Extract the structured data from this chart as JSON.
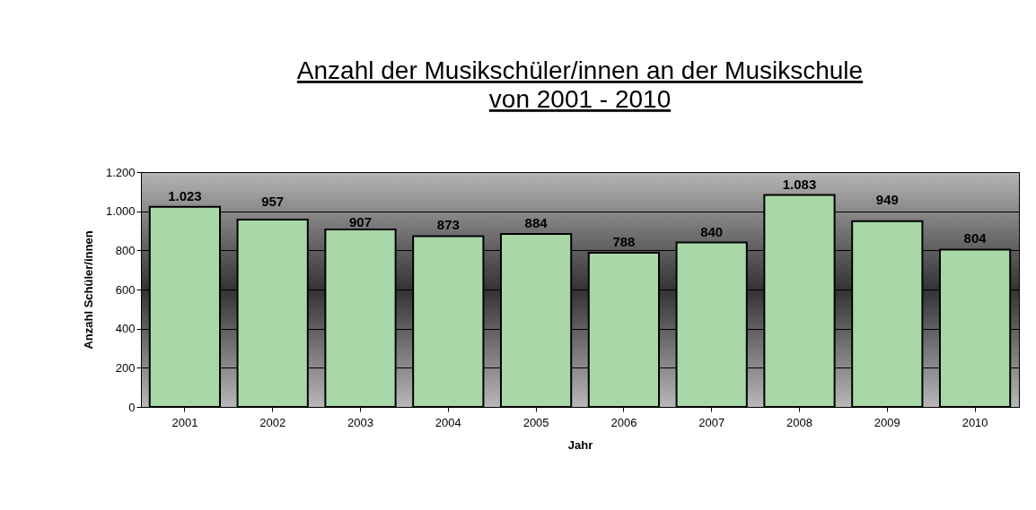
{
  "chart_data": {
    "type": "bar",
    "title": "Anzahl der Musikschüler/innen an der Musikschule",
    "subtitle": "von 2001 - 2010",
    "xlabel": "Jahr",
    "ylabel": "Anzahl Schüler/innen",
    "categories": [
      "2001",
      "2002",
      "2003",
      "2004",
      "2005",
      "2006",
      "2007",
      "2008",
      "2009",
      "2010"
    ],
    "values": [
      1023,
      957,
      907,
      873,
      884,
      788,
      840,
      1083,
      949,
      804
    ],
    "value_labels": [
      "1.023",
      "957",
      "907",
      "873",
      "884",
      "788",
      "840",
      "1.083",
      "949",
      "804"
    ],
    "color": "#a8d8a8",
    "ylim": [
      0,
      1200
    ],
    "yticks": [
      0,
      200,
      400,
      600,
      800,
      {
        "value": 1000,
        "label": "1.000"
      },
      {
        "value": 1200,
        "label": "1.200"
      }
    ],
    "grid": "y"
  }
}
